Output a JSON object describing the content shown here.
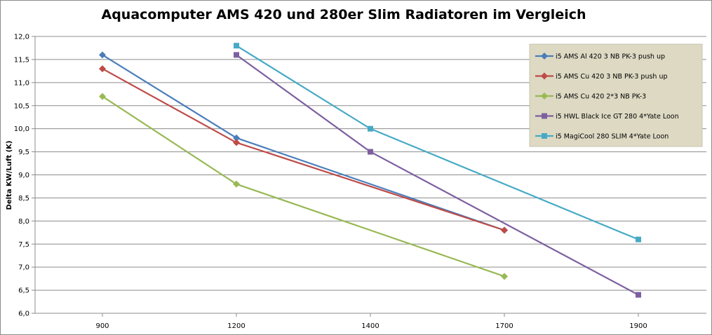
{
  "chart_data": {
    "type": "line",
    "title": "Aquacomputer AMS 420 und 280er Slim Radiatoren im Vergleich",
    "xlabel": "",
    "ylabel": "Delta KW/Luft (K)",
    "categories": [
      "900",
      "1200",
      "1400",
      "1700",
      "1900"
    ],
    "ylim": [
      6.0,
      12.0
    ],
    "yticks": [
      "6,0",
      "6,5",
      "7,0",
      "7,5",
      "8,0",
      "8,5",
      "9,0",
      "9,5",
      "10,0",
      "10,5",
      "11,0",
      "11,5",
      "12,0"
    ],
    "grid": true,
    "legend_position": "top-right",
    "series": [
      {
        "name": "i5 AMS Al 420 3 NB PK-3 push up",
        "color": "#4a7ebb",
        "marker": "diamond",
        "values": [
          11.6,
          9.8,
          null,
          7.8,
          null
        ]
      },
      {
        "name": "i5 AMS Cu 420 3 NB PK-3 push up",
        "color": "#be4b48",
        "marker": "diamond",
        "values": [
          11.3,
          9.7,
          null,
          7.8,
          null
        ]
      },
      {
        "name": "i5 AMS Cu 420 2*3 NB PK-3",
        "color": "#98b954",
        "marker": "diamond",
        "values": [
          10.7,
          8.8,
          null,
          6.8,
          null
        ]
      },
      {
        "name": "i5 HWL Black Ice GT 280 4*Yate Loon",
        "color": "#7d5fa0",
        "marker": "square",
        "values": [
          null,
          11.6,
          9.5,
          null,
          6.4
        ]
      },
      {
        "name": "i5 MagiCool 280 SLIM 4*Yate Loon",
        "color": "#46aac5",
        "marker": "square",
        "values": [
          null,
          11.8,
          10.0,
          null,
          7.6
        ]
      }
    ]
  }
}
